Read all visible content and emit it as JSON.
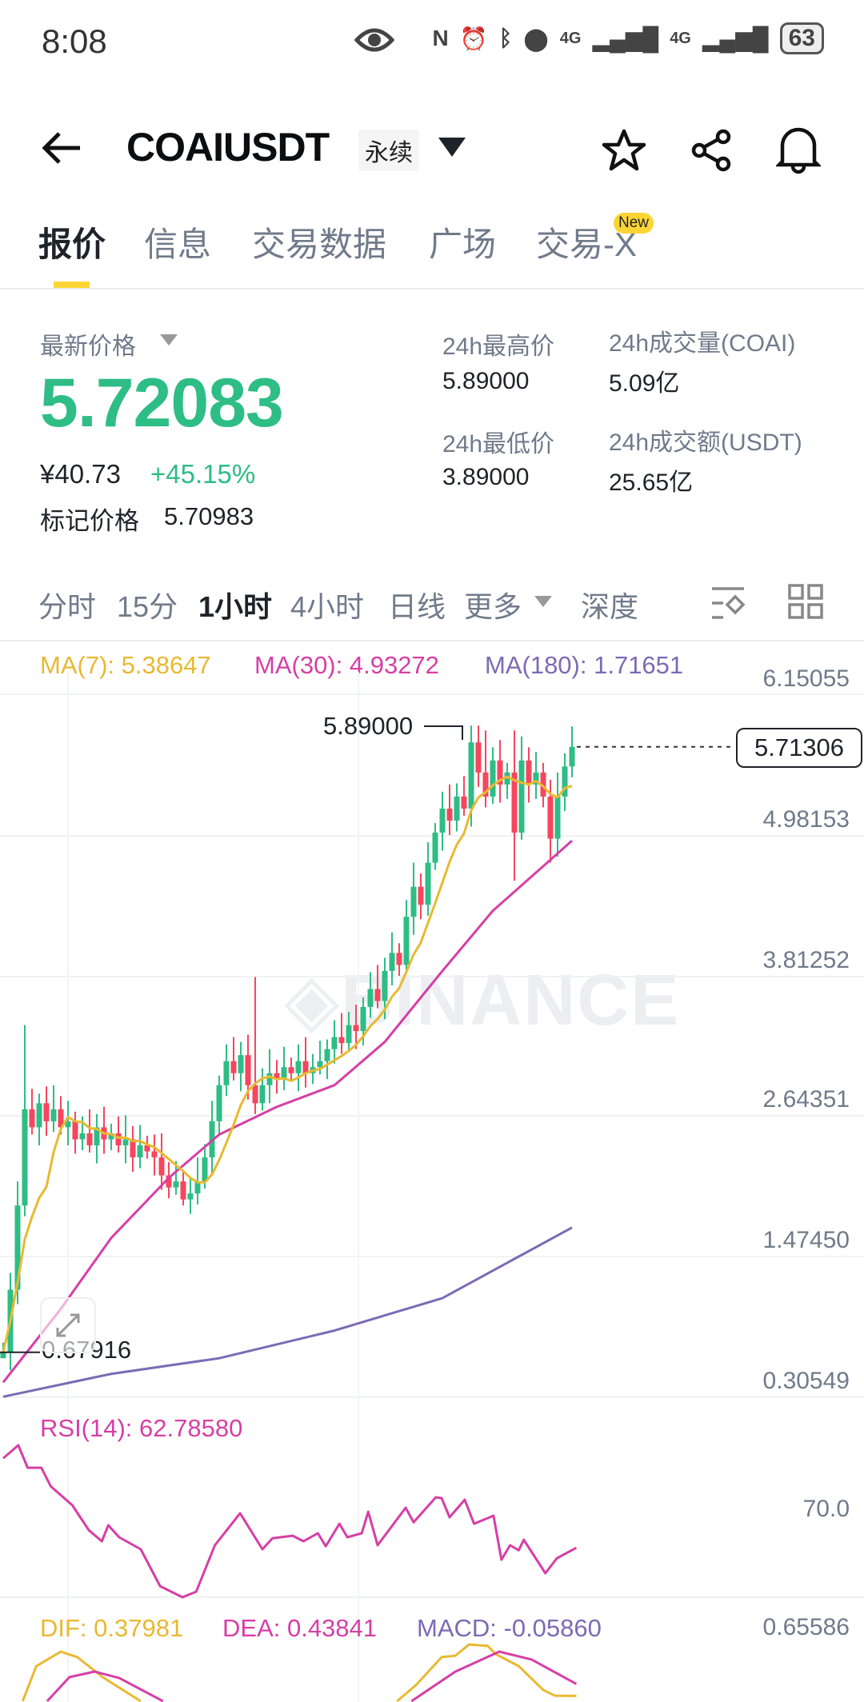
{
  "status_bar": {
    "time": "8:08",
    "network1": "4G",
    "network2": "4G",
    "battery": "63",
    "icons": [
      "eye-icon",
      "nfc-icon",
      "alarm-icon",
      "bluetooth-icon",
      "location-icon",
      "signal-icon",
      "signal-icon",
      "battery-icon"
    ]
  },
  "header": {
    "symbol": "COAIUSDT",
    "contract_type": "永续"
  },
  "tabs": [
    {
      "label": "报价"
    },
    {
      "label": "信息"
    },
    {
      "label": "交易数据"
    },
    {
      "label": "广场"
    },
    {
      "label": "交易-X"
    }
  ],
  "new_badge": "New",
  "ticker": {
    "last_price_label": "最新价格",
    "last_price": "5.72083",
    "cny_price": "¥40.73",
    "change_pct": "+45.15%",
    "mark_price_label": "标记价格",
    "mark_price": "5.70983",
    "high_label": "24h最高价",
    "high": "5.89000",
    "low_label": "24h最低价",
    "low": "3.89000",
    "vol_label": "24h成交量(COAI)",
    "vol": "5.09亿",
    "turnover_label": "24h成交额(USDT)",
    "turnover": "25.65亿"
  },
  "intervals": [
    {
      "label": "分时"
    },
    {
      "label": "15分"
    },
    {
      "label": "1小时"
    },
    {
      "label": "4小时"
    },
    {
      "label": "日线"
    },
    {
      "label": "更多"
    },
    {
      "label": "深度"
    }
  ],
  "colors": {
    "up": "#2ebd85",
    "down": "#f6465d",
    "ma7": "#e8b931",
    "ma30": "#d63fa5",
    "ma180": "#7b6bb5",
    "accent": "#fcd535"
  },
  "watermark": "BINANCE",
  "chart_data": [
    {
      "type": "candlestick",
      "title": "COAIUSDT 1小时",
      "legend": {
        "ma7": "MA(7): 5.38647",
        "ma30": "MA(30): 4.93272",
        "ma180": "MA(180): 1.71651"
      },
      "y_ticks": [
        "6.15055",
        "4.98153",
        "3.81252",
        "2.64351",
        "1.47450",
        "0.30549"
      ],
      "ylim": [
        0.30549,
        6.15055
      ],
      "high_marker": "5.89000",
      "low_marker": "0.67916",
      "last_price_tag": "5.71306",
      "closes": [
        0.68,
        1.2,
        1.9,
        2.7,
        2.55,
        2.75,
        2.6,
        2.7,
        2.55,
        2.6,
        2.45,
        2.5,
        2.4,
        2.55,
        2.45,
        2.5,
        2.4,
        2.45,
        2.3,
        2.4,
        2.35,
        2.3,
        2.15,
        2.05,
        2.1,
        1.95,
        2.0,
        2.1,
        2.3,
        2.6,
        2.9,
        3.1,
        3.0,
        3.15,
        2.9,
        2.75,
        2.9,
        3.0,
        2.95,
        3.05,
        3.0,
        3.1,
        3.0,
        3.05,
        3.1,
        3.2,
        3.3,
        3.25,
        3.4,
        3.35,
        3.55,
        3.7,
        3.6,
        3.85,
        4.0,
        3.9,
        4.3,
        4.55,
        4.4,
        4.75,
        5.0,
        5.2,
        5.1,
        5.3,
        5.2,
        5.75,
        5.5,
        5.3,
        5.6,
        5.4,
        5.5,
        5.0,
        5.6,
        5.4,
        5.5,
        5.3,
        4.95,
        5.3,
        5.55,
        5.71306
      ],
      "highs_override": {
        "3": 3.4,
        "35": 3.8,
        "65": 5.89,
        "67": 5.85,
        "71": 5.85
      },
      "lows_override": {
        "0": 0.67916,
        "25": 1.9,
        "71": 4.6,
        "76": 4.75
      },
      "ma30": [
        [
          0,
          0.43
        ],
        [
          8,
          1.04
        ],
        [
          15,
          1.63
        ],
        [
          23,
          2.13
        ],
        [
          30,
          2.49
        ],
        [
          38,
          2.72
        ],
        [
          46,
          2.9
        ],
        [
          53,
          3.26
        ],
        [
          61,
          3.85
        ],
        [
          68,
          4.35
        ],
        [
          79,
          4.93272
        ]
      ],
      "ma180": [
        [
          0,
          0.31
        ],
        [
          15,
          0.5
        ],
        [
          30,
          0.63
        ],
        [
          46,
          0.86
        ],
        [
          61,
          1.13
        ],
        [
          79,
          1.71651
        ]
      ]
    },
    {
      "type": "line",
      "title": "RSI(14)",
      "legend": "RSI(14): 62.78580",
      "y_tick": "70.0",
      "ylim": [
        52.9,
        92.9
      ],
      "points": [
        [
          0,
          80.7
        ],
        [
          2.1,
          83.3
        ],
        [
          3.4,
          78.8
        ],
        [
          5.3,
          78.8
        ],
        [
          6.6,
          75.1
        ],
        [
          9.6,
          71.3
        ],
        [
          11.9,
          66.3
        ],
        [
          13.7,
          64.1
        ],
        [
          14.6,
          67.3
        ],
        [
          16.1,
          64.9
        ],
        [
          19.1,
          62.5
        ],
        [
          21.8,
          55.1
        ],
        [
          24.9,
          52.9
        ],
        [
          26.8,
          54
        ],
        [
          29.4,
          63.3
        ],
        [
          32.9,
          69.7
        ],
        [
          36,
          62.5
        ],
        [
          37.4,
          64.7
        ],
        [
          40.2,
          65.2
        ],
        [
          41.7,
          64.1
        ],
        [
          43.7,
          65.7
        ],
        [
          44.8,
          63.1
        ],
        [
          46.7,
          67.6
        ],
        [
          47.8,
          64.9
        ],
        [
          49.8,
          65.7
        ],
        [
          50.7,
          70
        ],
        [
          52,
          63.3
        ],
        [
          55.9,
          70.8
        ],
        [
          57,
          67.9
        ],
        [
          60.1,
          72.9
        ],
        [
          60.9,
          72.7
        ],
        [
          62,
          68.9
        ],
        [
          64.1,
          72.4
        ],
        [
          65.4,
          67.6
        ],
        [
          68.1,
          69.2
        ],
        [
          69.2,
          60.4
        ],
        [
          70.4,
          63.3
        ],
        [
          71.6,
          62.3
        ],
        [
          72.3,
          64.4
        ],
        [
          75.3,
          57.7
        ],
        [
          76.9,
          60.7
        ],
        [
          79.6,
          62.7858
        ]
      ]
    },
    {
      "type": "line",
      "title": "MACD",
      "legend": {
        "dif": "DIF: 0.37981",
        "dea": "DEA: 0.43841",
        "macd": "MACD: -0.05860"
      },
      "y_tick": "0.65586",
      "dif": [
        [
          [
            2.7,
            0.354
          ],
          [
            4.6,
            0.526
          ],
          [
            8,
            0.597
          ],
          [
            10.3,
            0.57
          ],
          [
            13.8,
            0.472
          ],
          [
            19.1,
            0.354
          ]
        ],
        [
          [
            54.7,
            0.354
          ],
          [
            57.3,
            0.432
          ],
          [
            60.9,
            0.57
          ],
          [
            62.8,
            0.577
          ],
          [
            64.7,
            0.632
          ],
          [
            67.3,
            0.625
          ],
          [
            68.4,
            0.585
          ],
          [
            71.6,
            0.526
          ],
          [
            75,
            0.409
          ],
          [
            76.6,
            0.381
          ],
          [
            79.6,
            0.37981
          ]
        ]
      ],
      "dea": [
        [
          [
            6.1,
            0.354
          ],
          [
            9.2,
            0.472
          ],
          [
            12.7,
            0.499
          ],
          [
            16.1,
            0.468
          ],
          [
            22.2,
            0.354
          ]
        ],
        [
          [
            56.7,
            0.354
          ],
          [
            62.8,
            0.499
          ],
          [
            68.9,
            0.597
          ],
          [
            73.4,
            0.558
          ],
          [
            79.6,
            0.43841
          ]
        ]
      ]
    }
  ]
}
